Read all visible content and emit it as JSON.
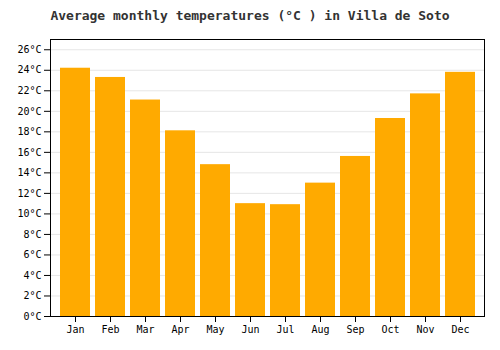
{
  "chart_data": {
    "type": "bar",
    "title": "Average monthly temperatures (°C ) in Villa de Soto",
    "categories": [
      "Jan",
      "Feb",
      "Mar",
      "Apr",
      "May",
      "Jun",
      "Jul",
      "Aug",
      "Sep",
      "Oct",
      "Nov",
      "Dec"
    ],
    "values": [
      24.2,
      23.3,
      21.1,
      18.1,
      14.8,
      11.0,
      10.9,
      13.0,
      15.6,
      19.3,
      21.7,
      23.8
    ],
    "color": "#FFAA00",
    "ylim": [
      0,
      27
    ],
    "yticks": [
      {
        "value": 0,
        "label": "0°C"
      },
      {
        "value": 2,
        "label": "2°C"
      },
      {
        "value": 4,
        "label": "4°C"
      },
      {
        "value": 6,
        "label": "6°C"
      },
      {
        "value": 8,
        "label": "8°C"
      },
      {
        "value": 10,
        "label": "10°C"
      },
      {
        "value": 12,
        "label": "12°C"
      },
      {
        "value": 14,
        "label": "14°C"
      },
      {
        "value": 16,
        "label": "16°C"
      },
      {
        "value": 18,
        "label": "18°C"
      },
      {
        "value": 20,
        "label": "20°C"
      },
      {
        "value": 22,
        "label": "22°C"
      },
      {
        "value": 24,
        "label": "24°C"
      },
      {
        "value": 26,
        "label": "26°C"
      }
    ],
    "grid": true
  }
}
